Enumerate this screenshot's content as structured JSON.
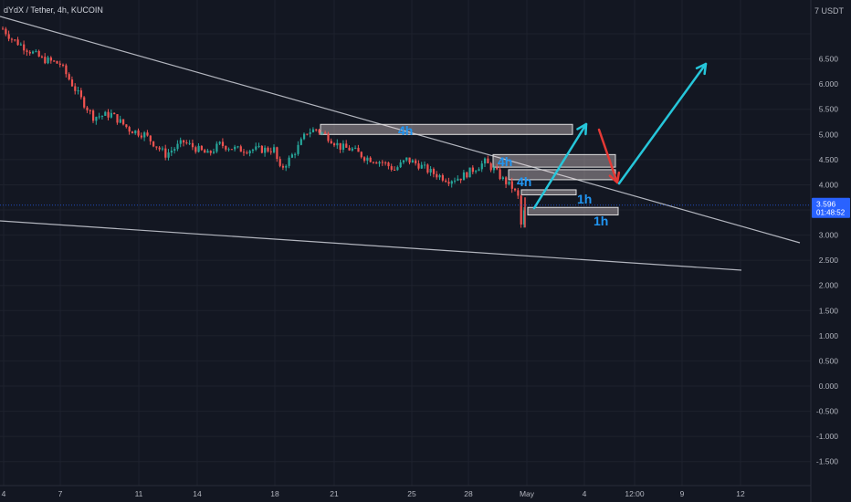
{
  "header": {
    "symbol": "dYdX / Tether",
    "interval": "4h",
    "exchange": "KUCOIN",
    "title": "dYdX / Tether, 4h, KUCOIN"
  },
  "price_axis": {
    "currency": "USDT",
    "currency_top_label": "7 USDT",
    "ticks": [
      "7.000",
      "6.500",
      "6.000",
      "5.500",
      "5.000",
      "4.500",
      "4.000",
      "3.500",
      "3.000",
      "2.500",
      "2.000",
      "1.500",
      "1.000",
      "0.500",
      "0.000",
      "-0.500",
      "-1.000",
      "-1.500"
    ],
    "last_price": "3.596",
    "countdown": "01:48:52"
  },
  "time_axis": {
    "ticks": [
      "4",
      "7",
      "11",
      "14",
      "18",
      "21",
      "25",
      "28",
      "May",
      "4",
      "12:00",
      "9",
      "12"
    ]
  },
  "colors": {
    "background": "#131722",
    "up_candle": "#26a69a",
    "down_candle": "#ef5350",
    "cyan_arrow": "#26c6da",
    "red_arrow": "#e53935",
    "trendline": "#b2b5be",
    "zone_fill": "#fbe9e7",
    "label_blue": "#2196f3",
    "price_tag": "#2962ff"
  },
  "chart_data": {
    "type": "candlestick",
    "title": "dYdX / Tether, 4h, KUCOIN",
    "xlabel": "",
    "ylabel": "USDT",
    "ylim": [
      -1.7,
      7.3
    ],
    "grid": true,
    "x_tick_labels": [
      "4",
      "7",
      "11",
      "14",
      "18",
      "21",
      "25",
      "28",
      "May",
      "4",
      "12:00",
      "9",
      "12"
    ],
    "price_path": [
      {
        "x": 0,
        "y": 7.1
      },
      {
        "x": 3,
        "y": 6.9
      },
      {
        "x": 8,
        "y": 6.7
      },
      {
        "x": 13,
        "y": 6.5
      },
      {
        "x": 19,
        "y": 6.4
      },
      {
        "x": 23,
        "y": 6.0
      },
      {
        "x": 26,
        "y": 5.7
      },
      {
        "x": 30,
        "y": 5.35
      },
      {
        "x": 36,
        "y": 5.4
      },
      {
        "x": 42,
        "y": 5.1
      },
      {
        "x": 47,
        "y": 5.0
      },
      {
        "x": 54,
        "y": 4.6
      },
      {
        "x": 60,
        "y": 4.85
      },
      {
        "x": 68,
        "y": 4.6
      },
      {
        "x": 72,
        "y": 4.8
      },
      {
        "x": 78,
        "y": 4.7
      },
      {
        "x": 84,
        "y": 4.7
      },
      {
        "x": 90,
        "y": 4.7
      },
      {
        "x": 92,
        "y": 4.3
      },
      {
        "x": 95,
        "y": 4.5
      },
      {
        "x": 98,
        "y": 4.75
      },
      {
        "x": 101,
        "y": 5.05
      },
      {
        "x": 104,
        "y": 5.1
      },
      {
        "x": 108,
        "y": 4.95
      },
      {
        "x": 112,
        "y": 4.75
      },
      {
        "x": 116,
        "y": 4.7
      },
      {
        "x": 120,
        "y": 4.55
      },
      {
        "x": 126,
        "y": 4.45
      },
      {
        "x": 130,
        "y": 4.3
      },
      {
        "x": 134,
        "y": 4.5
      },
      {
        "x": 138,
        "y": 4.4
      },
      {
        "x": 142,
        "y": 4.25
      },
      {
        "x": 148,
        "y": 4.1
      },
      {
        "x": 152,
        "y": 4.15
      },
      {
        "x": 156,
        "y": 4.3
      },
      {
        "x": 160,
        "y": 4.45
      },
      {
        "x": 163,
        "y": 4.3
      },
      {
        "x": 166,
        "y": 4.1
      },
      {
        "x": 169,
        "y": 3.95
      },
      {
        "x": 171,
        "y": 3.75
      },
      {
        "x": 172,
        "y": 3.2
      },
      {
        "x": 173,
        "y": 3.45
      },
      {
        "x": 174,
        "y": 3.6
      }
    ],
    "last_price": 3.596,
    "zones": [
      {
        "label": "4h",
        "ymin": 5.0,
        "ymax": 5.2
      },
      {
        "label": "4h",
        "ymin": 4.35,
        "ymax": 4.6
      },
      {
        "label": "4h",
        "ymin": 4.1,
        "ymax": 4.3
      },
      {
        "label": "1h",
        "ymin": 3.8,
        "ymax": 3.9
      },
      {
        "label": "1h",
        "ymin": 3.4,
        "ymax": 3.55
      }
    ],
    "projection": {
      "cyan_up": [
        {
          "y": 3.55
        },
        {
          "y": 5.2
        }
      ],
      "red_down": [
        {
          "y": 5.05
        },
        {
          "y": 4.0
        }
      ],
      "cyan_up_2": [
        {
          "y": 4.0
        },
        {
          "y": 6.4
        }
      ]
    },
    "trendlines": [
      {
        "name": "upper",
        "from_y": 7.15,
        "to_y": 2.85
      },
      {
        "name": "lower",
        "from_y": 3.2,
        "to_y": 2.3
      }
    ]
  }
}
